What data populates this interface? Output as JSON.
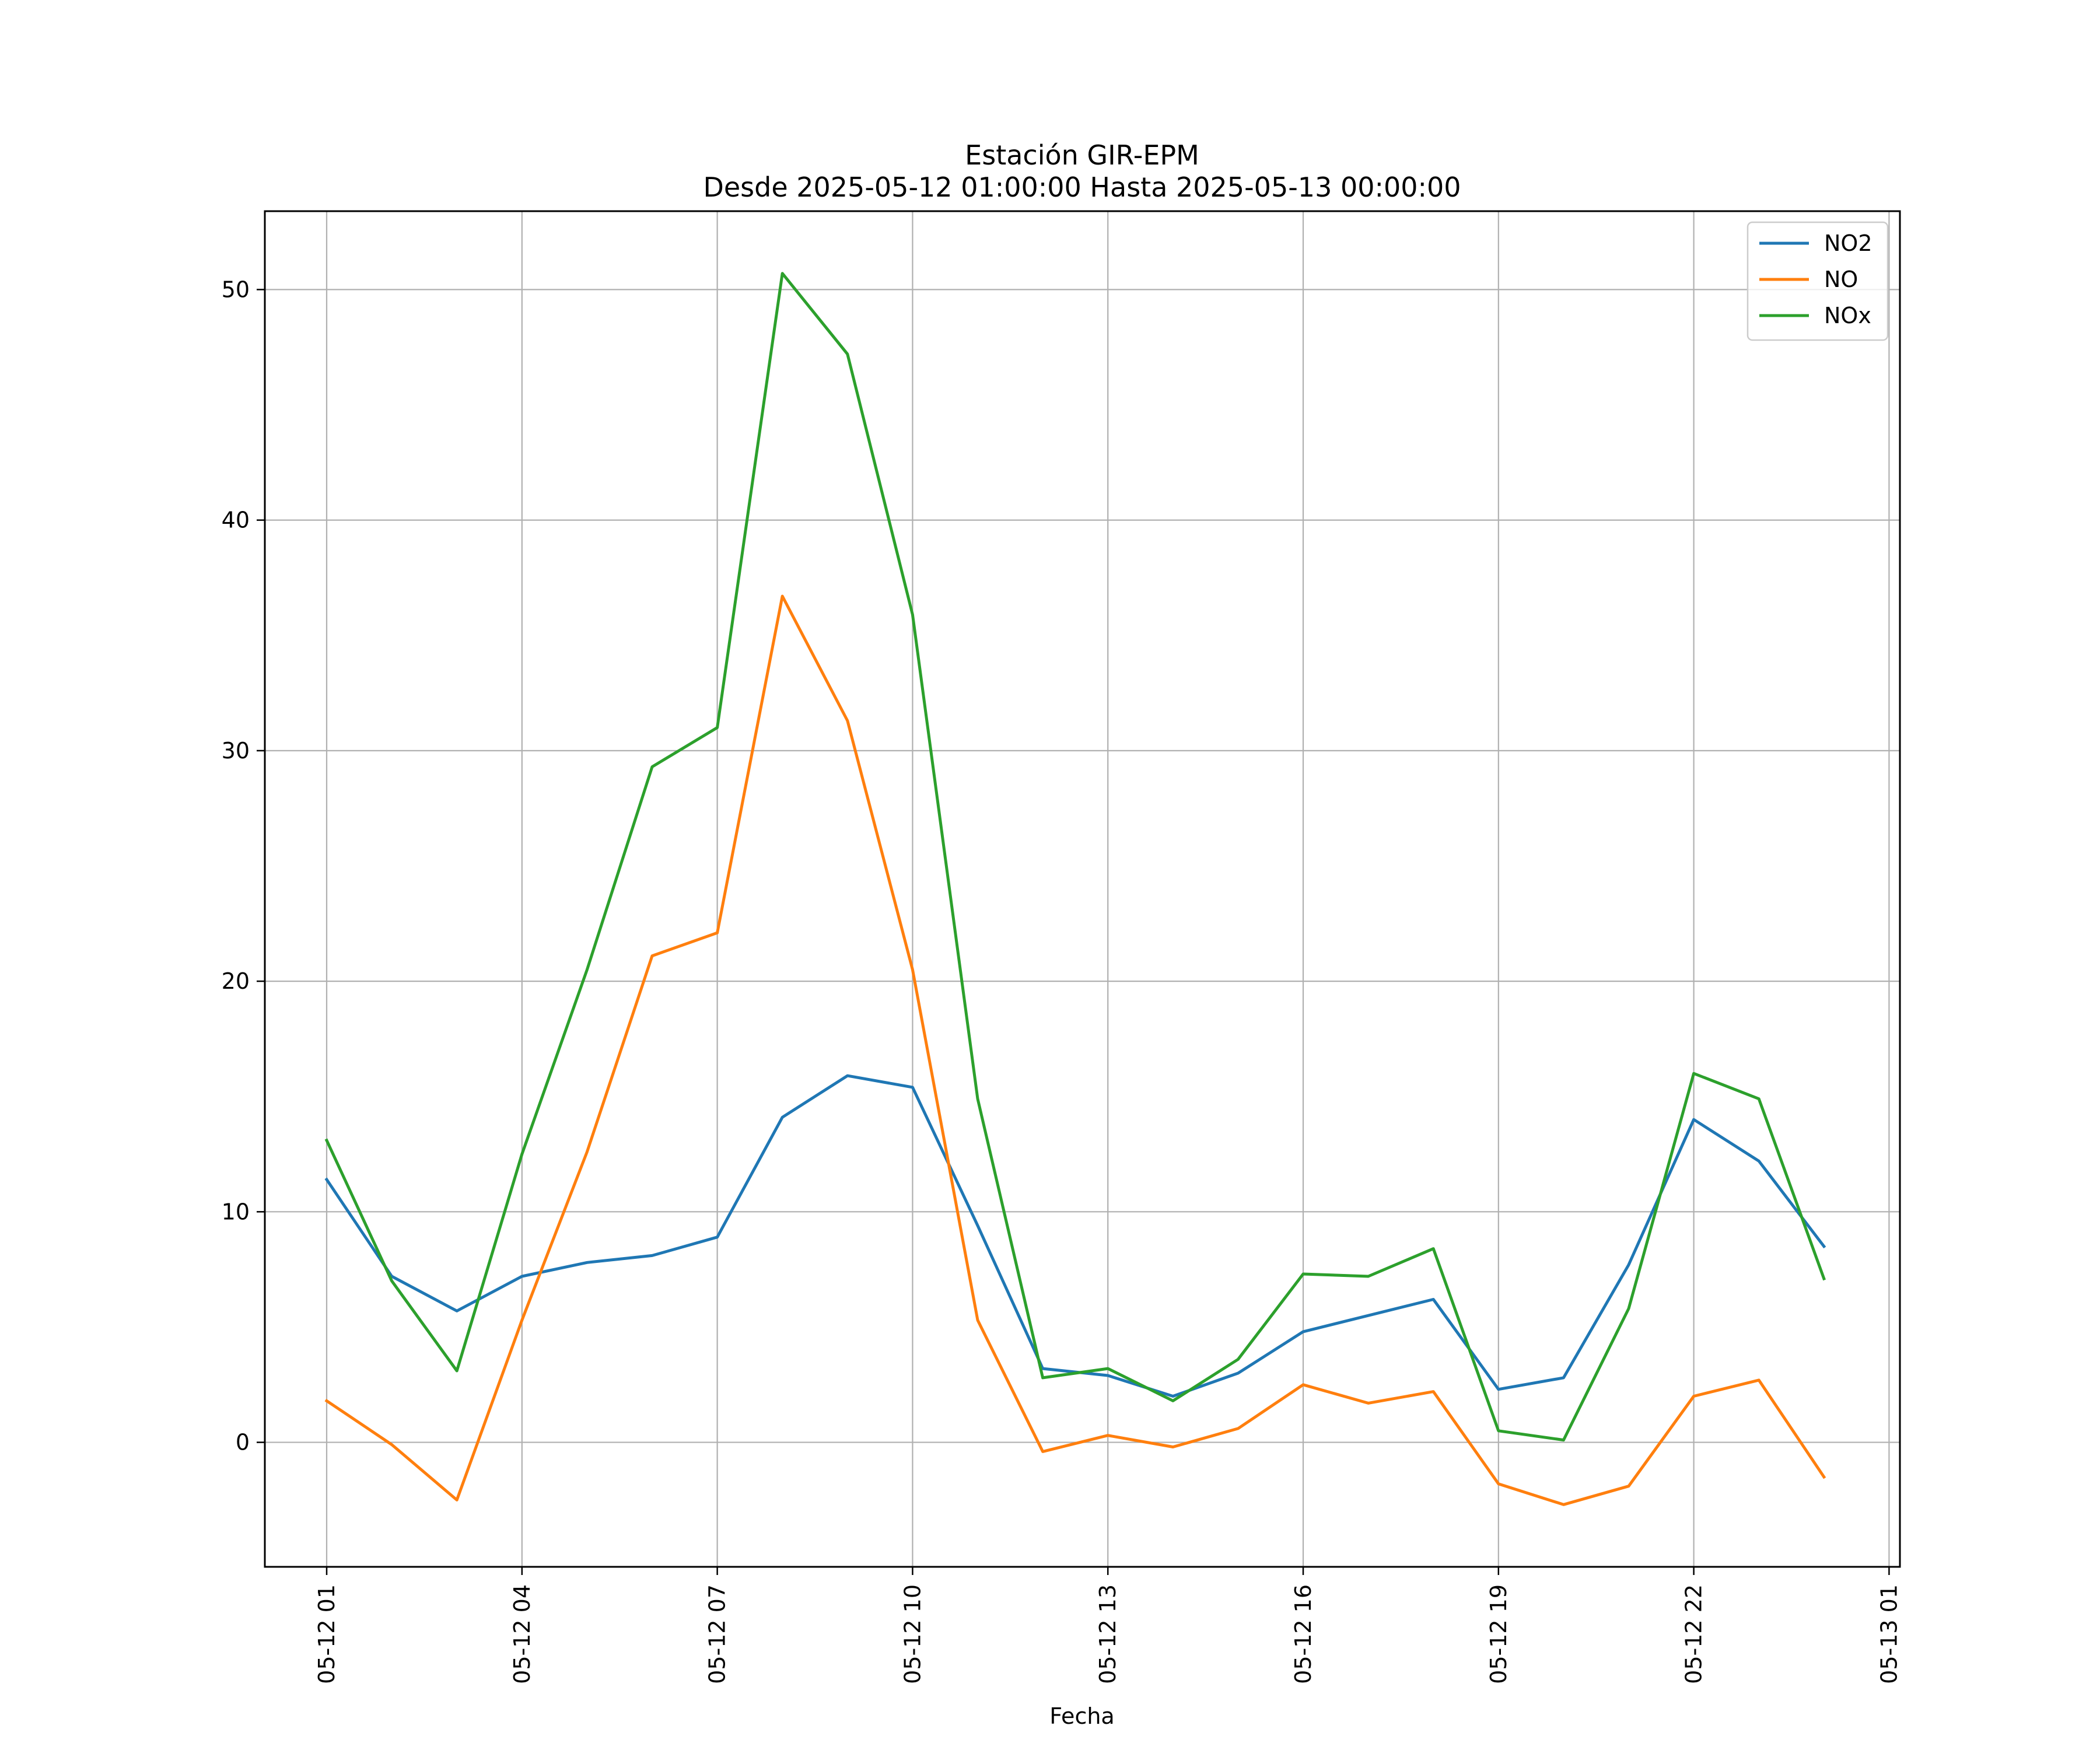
{
  "chart_data": {
    "type": "line",
    "title": "Estación GIR-EPM",
    "subtitle": "Desde 2025-05-12 01:00:00 Hasta 2025-05-13 00:00:00",
    "xlabel": "Fecha",
    "ylabel": "",
    "x": [
      "2025-05-12 01:00",
      "2025-05-12 02:00",
      "2025-05-12 03:00",
      "2025-05-12 04:00",
      "2025-05-12 05:00",
      "2025-05-12 06:00",
      "2025-05-12 07:00",
      "2025-05-12 08:00",
      "2025-05-12 09:00",
      "2025-05-12 10:00",
      "2025-05-12 11:00",
      "2025-05-12 12:00",
      "2025-05-12 13:00",
      "2025-05-12 14:00",
      "2025-05-12 15:00",
      "2025-05-12 16:00",
      "2025-05-12 17:00",
      "2025-05-12 18:00",
      "2025-05-12 19:00",
      "2025-05-12 20:00",
      "2025-05-12 21:00",
      "2025-05-12 22:00",
      "2025-05-12 23:00",
      "2025-05-13 00:00"
    ],
    "x_ticks": [
      "05-12 01",
      "05-12 04",
      "05-12 07",
      "05-12 10",
      "05-12 13",
      "05-12 16",
      "05-12 19",
      "05-12 22",
      "05-13 01"
    ],
    "xlim": [
      "2025-05-12 00:03",
      "2025-05-13 01:10"
    ],
    "ylim": [
      -5.4,
      53.4
    ],
    "y_ticks": [
      0,
      10,
      20,
      30,
      40,
      50
    ],
    "grid": true,
    "legend_position": "upper-right",
    "series": [
      {
        "name": "NO2",
        "color": "#1f77b4",
        "values": [
          11.4,
          7.2,
          5.7,
          7.2,
          7.8,
          8.1,
          8.9,
          14.1,
          15.9,
          15.4,
          9.4,
          3.2,
          2.9,
          2.0,
          3.0,
          4.8,
          5.5,
          6.2,
          2.3,
          2.8,
          7.7,
          14.0,
          12.2,
          8.5
        ]
      },
      {
        "name": "NO",
        "color": "#ff7f0e",
        "values": [
          1.8,
          -0.1,
          -2.5,
          5.3,
          12.6,
          21.1,
          22.1,
          36.7,
          31.3,
          20.5,
          5.3,
          -0.4,
          0.3,
          -0.2,
          0.6,
          2.5,
          1.7,
          2.2,
          -1.8,
          -2.7,
          -1.9,
          2.0,
          2.7,
          -1.5
        ]
      },
      {
        "name": "NOx",
        "color": "#2ca02c",
        "values": [
          13.1,
          7.0,
          3.1,
          12.5,
          20.5,
          29.3,
          31.0,
          50.7,
          47.2,
          35.9,
          14.9,
          2.8,
          3.2,
          1.8,
          3.6,
          7.3,
          7.2,
          8.4,
          0.5,
          0.1,
          5.8,
          16.0,
          14.9,
          7.1
        ]
      }
    ]
  }
}
